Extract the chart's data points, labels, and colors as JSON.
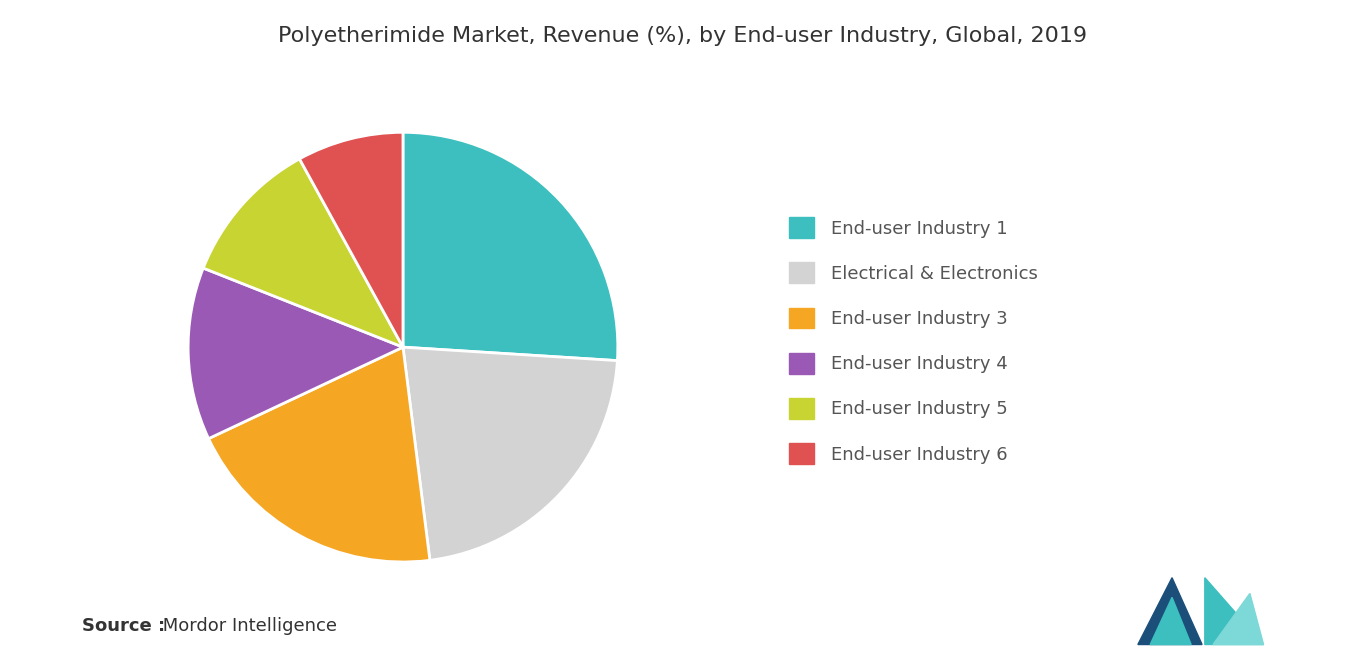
{
  "title": "Polyetherimide Market, Revenue (%), by End-user Industry, Global, 2019",
  "labels": [
    "End-user Industry 1",
    "Electrical & Electronics",
    "End-user Industry 3",
    "End-user Industry 4",
    "End-user Industry 5",
    "End-user Industry 6"
  ],
  "values": [
    26,
    22,
    20,
    13,
    11,
    8
  ],
  "colors": [
    "#3dbfbf",
    "#d3d3d3",
    "#f5a623",
    "#9b59b6",
    "#c8d432",
    "#e05252"
  ],
  "startangle": 90,
  "source_bold": "Source :",
  "source_normal": " Mordor Intelligence",
  "background_color": "#ffffff",
  "title_fontsize": 16,
  "legend_fontsize": 13,
  "source_fontsize": 13,
  "wedge_edge_color": "#ffffff",
  "wedge_linewidth": 2.0
}
